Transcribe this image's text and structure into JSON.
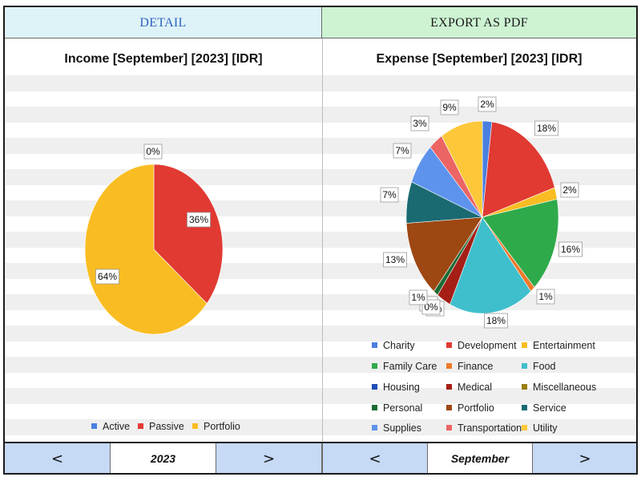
{
  "header": {
    "detail_label": "DETAIL",
    "export_label": "EXPORT AS PDF"
  },
  "colors": {
    "detail_bg": "#def3f8",
    "detail_text": "#2e63c0",
    "export_bg": "#cdf3d3",
    "nav_bg": "#c6d9f5",
    "stripe": "#efefef"
  },
  "footer": {
    "year_prev": "<",
    "year_value": "2023",
    "year_next": ">",
    "month_prev": "<",
    "month_value": "September",
    "month_next": ">"
  },
  "chart_data": [
    {
      "type": "pie",
      "title": "Income [September] [2023] [IDR]",
      "legend_position": "bottom",
      "series": [
        {
          "name": "Active",
          "value": 0,
          "label": "0%",
          "color": "#4a7fe0"
        },
        {
          "name": "Passive",
          "value": 36,
          "label": "36%",
          "color": "#e03a32"
        },
        {
          "name": "Portfolio",
          "value": 64,
          "label": "64%",
          "color": "#f9bd23"
        }
      ]
    },
    {
      "type": "pie",
      "title": "Expense [September] [2023] [IDR]",
      "legend_position": "bottom",
      "series": [
        {
          "name": "Charity",
          "value": 2,
          "label": "2%",
          "color": "#4a7fe0"
        },
        {
          "name": "Development",
          "value": 18,
          "label": "18%",
          "color": "#e03a32"
        },
        {
          "name": "Entertainment",
          "value": 2,
          "label": "2%",
          "color": "#f9bd23"
        },
        {
          "name": "Family Care",
          "value": 16,
          "label": "16%",
          "color": "#2faa4a"
        },
        {
          "name": "Finance",
          "value": 1,
          "label": "1%",
          "color": "#ee7a2a"
        },
        {
          "name": "Food",
          "value": 18,
          "label": "18%",
          "color": "#3fbfcc"
        },
        {
          "name": "Housing",
          "value": 0,
          "label": "0%",
          "color": "#1e4eb4"
        },
        {
          "name": "Medical",
          "value": 3,
          "label": "3%",
          "color": "#a51f17"
        },
        {
          "name": "Miscellaneous",
          "value": 0,
          "label": "0%",
          "color": "#9a7d14"
        },
        {
          "name": "Personal",
          "value": 1,
          "label": "1%",
          "color": "#1c6b34"
        },
        {
          "name": "Portfolio",
          "value": 13,
          "label": "13%",
          "color": "#9d4712"
        },
        {
          "name": "Service",
          "value": 7,
          "label": "7%",
          "color": "#1a6a72"
        },
        {
          "name": "Supplies",
          "value": 7,
          "label": "7%",
          "color": "#5d93ec"
        },
        {
          "name": "Transportation",
          "value": 3,
          "label": "3%",
          "color": "#ec6464"
        },
        {
          "name": "Utility",
          "value": 9,
          "label": "9%",
          "color": "#fcc83a"
        }
      ]
    }
  ]
}
